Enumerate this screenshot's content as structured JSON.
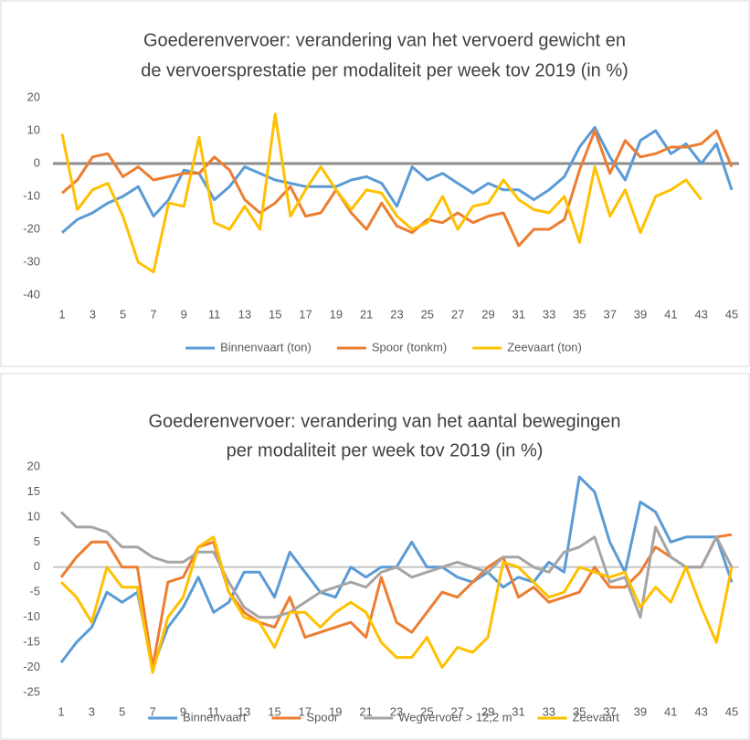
{
  "chart_data": [
    {
      "type": "line",
      "title": [
        "Goederenvervoer: verandering van het vervoerd gewicht en",
        "de vervoersprestatie per modaliteit per week tov 2019 (in %)"
      ],
      "x": [
        1,
        2,
        3,
        4,
        5,
        6,
        7,
        8,
        9,
        10,
        11,
        12,
        13,
        14,
        15,
        16,
        17,
        18,
        19,
        20,
        21,
        22,
        23,
        24,
        25,
        26,
        27,
        28,
        29,
        30,
        31,
        32,
        33,
        34,
        35,
        36,
        37,
        38,
        39,
        40,
        41,
        42,
        43,
        44,
        45
      ],
      "xlim": [
        1,
        45
      ],
      "xticks": [
        1,
        3,
        5,
        7,
        9,
        11,
        13,
        15,
        17,
        19,
        21,
        23,
        25,
        27,
        29,
        31,
        33,
        35,
        37,
        39,
        41,
        43,
        45
      ],
      "ylim": [
        -40,
        20
      ],
      "yticks": [
        -40,
        -30,
        -20,
        -10,
        0,
        10,
        20
      ],
      "grid": false,
      "legend": "bottom",
      "series": [
        {
          "name": "Binnenvaart (ton)",
          "color": "#5b9bd5",
          "values": [
            -21,
            -17,
            -15,
            -12,
            -10,
            -7,
            -16,
            -11,
            -2,
            -3,
            -11,
            -7,
            -1,
            -3,
            -5,
            -6,
            -7,
            -7,
            -7,
            -5,
            -4,
            -6,
            -13,
            -1,
            -5,
            -3,
            -6,
            -9,
            -6,
            -8,
            -8,
            -11,
            -8,
            -4,
            5,
            11,
            2,
            -5,
            7,
            10,
            3,
            6,
            0,
            6,
            -8
          ]
        },
        {
          "name": "Spoor (tonkm)",
          "color": "#ed7d31",
          "values": [
            -9,
            -5,
            2,
            3,
            -4,
            -1,
            -5,
            -4,
            -3,
            -3,
            2,
            -2,
            -11,
            -15,
            -12,
            -7,
            -16,
            -15,
            -8,
            -15,
            -20,
            -12,
            -19,
            -21,
            -17,
            -18,
            -15,
            -18,
            -16,
            -15,
            -25,
            -20,
            -20,
            -17,
            -2,
            10,
            -3,
            7,
            2,
            3,
            5,
            5,
            6,
            10,
            -1
          ]
        },
        {
          "name": "Zeevaart (ton)",
          "color": "#ffc000",
          "values": [
            9,
            -14,
            -8,
            -6,
            -16,
            -30,
            -33,
            -12,
            -13,
            8,
            -18,
            -20,
            -13,
            -20,
            15,
            -16,
            -8,
            -1,
            -8,
            -14,
            -8,
            -9,
            -16,
            -20,
            -18,
            -10,
            -20,
            -13,
            -12,
            -5,
            -11,
            -14,
            -15,
            -10,
            -24,
            -1,
            -16,
            -8,
            -21,
            -10,
            -8,
            -5,
            -11,
            null,
            null
          ]
        }
      ]
    },
    {
      "type": "line",
      "title": [
        "Goederenvervoer: verandering van het aantal bewegingen",
        "per modaliteit per week tov 2019 (in %)"
      ],
      "x": [
        1,
        2,
        3,
        4,
        5,
        6,
        7,
        8,
        9,
        10,
        11,
        12,
        13,
        14,
        15,
        16,
        17,
        18,
        19,
        20,
        21,
        22,
        23,
        24,
        25,
        26,
        27,
        28,
        29,
        30,
        31,
        32,
        33,
        34,
        35,
        36,
        37,
        38,
        39,
        40,
        41,
        42,
        43,
        44,
        45
      ],
      "xlim": [
        1,
        45
      ],
      "xticks": [
        1,
        3,
        5,
        7,
        9,
        11,
        13,
        15,
        17,
        19,
        21,
        23,
        25,
        27,
        29,
        31,
        33,
        35,
        37,
        39,
        41,
        43,
        45
      ],
      "ylim": [
        -25,
        20
      ],
      "yticks": [
        -25,
        -20,
        -15,
        -10,
        -5,
        0,
        5,
        10,
        15,
        20
      ],
      "grid": false,
      "legend": "bottom",
      "series": [
        {
          "name": "Binnenvaart",
          "color": "#5b9bd5",
          "values": [
            -19,
            -15,
            -12,
            -5,
            -7,
            -5,
            -20,
            -12,
            -8,
            -2,
            -9,
            -7,
            -1,
            -1,
            -6,
            3,
            -1,
            -5,
            -6,
            0,
            -2,
            0,
            0,
            5,
            0,
            0,
            -2,
            -3,
            -1,
            -4,
            -2,
            -3,
            1,
            -1,
            18,
            15,
            5,
            -1,
            13,
            11,
            5,
            6,
            6,
            6,
            -3
          ]
        },
        {
          "name": "Spoor",
          "color": "#ed7d31",
          "values": [
            -2,
            2,
            5,
            5,
            0,
            0,
            -20,
            -3,
            -2,
            4,
            5,
            -5,
            -9,
            -11,
            -12,
            -6,
            -14,
            -13,
            -12,
            -11,
            -14,
            -2,
            -11,
            -13,
            -9,
            -5,
            -6,
            -3,
            0,
            2,
            -6,
            -4,
            -7,
            -6,
            -5,
            0,
            -4,
            -4,
            -1,
            4,
            2,
            0,
            0,
            6,
            6.5
          ]
        },
        {
          "name": "Wegvervoer > 12,2 m",
          "color": "#a5a5a5",
          "values": [
            11,
            8,
            8,
            7,
            4,
            4,
            2,
            1,
            1,
            3,
            3,
            -3,
            -8,
            -10,
            -10,
            -9,
            -7,
            -5,
            -4,
            -3,
            -4,
            -1,
            0,
            -2,
            -1,
            0,
            1,
            0,
            -1,
            2,
            2,
            0,
            -1,
            3,
            4,
            6,
            -3,
            -2,
            -10,
            8,
            2,
            0,
            0,
            6,
            0
          ]
        },
        {
          "name": "Zeevaart",
          "color": "#ffc000",
          "values": [
            -3,
            -6,
            -11,
            0,
            -4,
            -4,
            -21,
            -10,
            -6,
            4,
            6,
            -5,
            -10,
            -11,
            -16,
            -9,
            -9,
            -12,
            -9,
            -7,
            -9,
            -15,
            -18,
            -18,
            -14,
            -20,
            -16,
            -17,
            -14,
            1,
            0,
            -3,
            -6,
            -5,
            0,
            -1,
            -2,
            -1,
            -8,
            -4,
            -7,
            0,
            -8,
            -15,
            0
          ]
        }
      ]
    }
  ]
}
